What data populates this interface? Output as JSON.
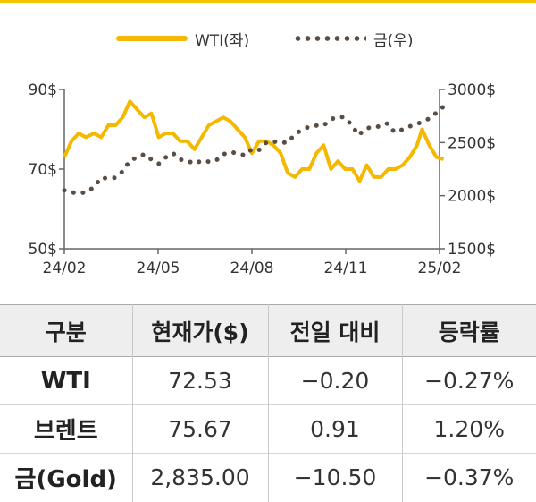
{
  "chart_data": {
    "type": "line",
    "x_ticks": [
      "24/02",
      "24/05",
      "24/08",
      "24/11",
      "25/02"
    ],
    "y_left": {
      "ticks": [
        "90$",
        "70$",
        "50$"
      ],
      "min": 50,
      "max": 90
    },
    "y_right": {
      "ticks": [
        "3000$",
        "2500$",
        "2000$",
        "1500$"
      ],
      "min": 1500,
      "max": 3000
    },
    "legend_position": "top-center",
    "series": [
      {
        "name": "WTI(좌)",
        "axis": "left",
        "style": "solid",
        "color": "#f5b800",
        "points": [
          [
            "2024-02-01",
            73
          ],
          [
            "2024-02-08",
            77
          ],
          [
            "2024-02-15",
            79
          ],
          [
            "2024-02-22",
            78
          ],
          [
            "2024-03-01",
            79
          ],
          [
            "2024-03-08",
            78
          ],
          [
            "2024-03-15",
            81
          ],
          [
            "2024-03-22",
            81
          ],
          [
            "2024-03-29",
            83
          ],
          [
            "2024-04-05",
            87
          ],
          [
            "2024-04-12",
            85
          ],
          [
            "2024-04-19",
            83
          ],
          [
            "2024-04-26",
            84
          ],
          [
            "2024-05-03",
            78
          ],
          [
            "2024-05-10",
            79
          ],
          [
            "2024-05-17",
            79
          ],
          [
            "2024-05-24",
            77
          ],
          [
            "2024-05-31",
            77
          ],
          [
            "2024-06-07",
            75
          ],
          [
            "2024-06-14",
            78
          ],
          [
            "2024-06-21",
            81
          ],
          [
            "2024-06-28",
            82
          ],
          [
            "2024-07-05",
            83
          ],
          [
            "2024-07-12",
            82
          ],
          [
            "2024-07-19",
            80
          ],
          [
            "2024-07-26",
            78
          ],
          [
            "2024-08-02",
            74
          ],
          [
            "2024-08-09",
            77
          ],
          [
            "2024-08-16",
            77
          ],
          [
            "2024-08-23",
            76
          ],
          [
            "2024-08-30",
            74
          ],
          [
            "2024-09-06",
            69
          ],
          [
            "2024-09-13",
            68
          ],
          [
            "2024-09-20",
            70
          ],
          [
            "2024-09-27",
            70
          ],
          [
            "2024-10-04",
            74
          ],
          [
            "2024-10-11",
            76
          ],
          [
            "2024-10-18",
            70
          ],
          [
            "2024-10-25",
            72
          ],
          [
            "2024-11-01",
            70
          ],
          [
            "2024-11-08",
            70
          ],
          [
            "2024-11-15",
            67
          ],
          [
            "2024-11-22",
            71
          ],
          [
            "2024-11-29",
            68
          ],
          [
            "2024-12-06",
            68
          ],
          [
            "2024-12-13",
            70
          ],
          [
            "2024-12-20",
            70
          ],
          [
            "2024-12-27",
            71
          ],
          [
            "2025-01-03",
            73
          ],
          [
            "2025-01-10",
            76
          ],
          [
            "2025-01-15",
            80
          ],
          [
            "2025-01-22",
            76
          ],
          [
            "2025-01-29",
            73
          ],
          [
            "2025-02-05",
            72.5
          ]
        ]
      },
      {
        "name": "금(우)",
        "axis": "right",
        "style": "dotted",
        "color": "#5a4e44",
        "points": [
          [
            "2024-02-01",
            2050
          ],
          [
            "2024-02-08",
            2030
          ],
          [
            "2024-02-15",
            2025
          ],
          [
            "2024-02-22",
            2030
          ],
          [
            "2024-03-01",
            2080
          ],
          [
            "2024-03-08",
            2170
          ],
          [
            "2024-03-15",
            2160
          ],
          [
            "2024-03-22",
            2170
          ],
          [
            "2024-03-29",
            2230
          ],
          [
            "2024-04-05",
            2330
          ],
          [
            "2024-04-12",
            2360
          ],
          [
            "2024-04-19",
            2390
          ],
          [
            "2024-04-26",
            2340
          ],
          [
            "2024-05-03",
            2300
          ],
          [
            "2024-05-10",
            2360
          ],
          [
            "2024-05-17",
            2400
          ],
          [
            "2024-05-24",
            2340
          ],
          [
            "2024-05-31",
            2330
          ],
          [
            "2024-06-07",
            2300
          ],
          [
            "2024-06-14",
            2330
          ],
          [
            "2024-06-21",
            2320
          ],
          [
            "2024-06-28",
            2330
          ],
          [
            "2024-07-05",
            2390
          ],
          [
            "2024-07-12",
            2410
          ],
          [
            "2024-07-19",
            2400
          ],
          [
            "2024-07-26",
            2380
          ],
          [
            "2024-08-02",
            2440
          ],
          [
            "2024-08-09",
            2430
          ],
          [
            "2024-08-16",
            2500
          ],
          [
            "2024-08-23",
            2510
          ],
          [
            "2024-08-30",
            2500
          ],
          [
            "2024-09-06",
            2500
          ],
          [
            "2024-09-13",
            2580
          ],
          [
            "2024-09-20",
            2620
          ],
          [
            "2024-09-27",
            2650
          ],
          [
            "2024-10-04",
            2660
          ],
          [
            "2024-10-11",
            2660
          ],
          [
            "2024-10-18",
            2720
          ],
          [
            "2024-10-25",
            2740
          ],
          [
            "2024-10-31",
            2740
          ],
          [
            "2024-11-07",
            2670
          ],
          [
            "2024-11-14",
            2570
          ],
          [
            "2024-11-21",
            2630
          ],
          [
            "2024-11-28",
            2650
          ],
          [
            "2024-12-05",
            2650
          ],
          [
            "2024-12-12",
            2680
          ],
          [
            "2024-12-19",
            2600
          ],
          [
            "2024-12-26",
            2620
          ],
          [
            "2025-01-02",
            2650
          ],
          [
            "2025-01-09",
            2670
          ],
          [
            "2025-01-16",
            2700
          ],
          [
            "2025-01-23",
            2730
          ],
          [
            "2025-01-30",
            2790
          ],
          [
            "2025-02-05",
            2840
          ]
        ]
      }
    ]
  },
  "table": {
    "headers": [
      "구분",
      "현재가($)",
      "전일 대비",
      "등락률"
    ],
    "rows": [
      {
        "name": "WTI",
        "price": "72.53",
        "change": "−0.20",
        "rate": "−0.27%"
      },
      {
        "name": "브렌트",
        "price": "75.67",
        "change": "0.91",
        "rate": "1.20%"
      },
      {
        "name": "금(Gold)",
        "price": "2,835.00",
        "change": "−10.50",
        "rate": "−0.37%"
      }
    ]
  },
  "colors": {
    "accent": "#f5b800",
    "gold_series": "#5a4e44",
    "header_bg": "#eeeeee"
  }
}
